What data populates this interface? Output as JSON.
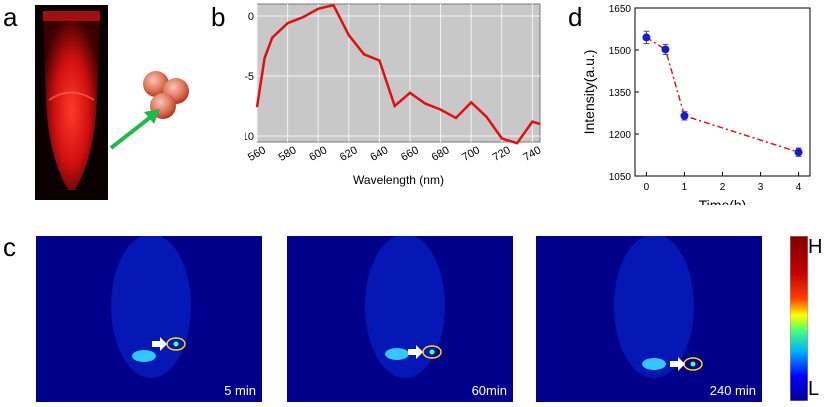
{
  "panel_labels": {
    "a": "a",
    "b": "b",
    "c": "c",
    "d": "d"
  },
  "panel_c": {
    "captions": [
      "5 min",
      "60min",
      "240 min"
    ],
    "colorbar": {
      "high": "H",
      "low": "L"
    }
  },
  "chart_data": [
    {
      "type": "line",
      "panel": "b",
      "xlabel": "Wavelength (nm)",
      "ylabel": "",
      "xlim": [
        560,
        745
      ],
      "ylim": [
        -10.5,
        1
      ],
      "xticks": [
        "560",
        "580",
        "600",
        "620",
        "640",
        "660",
        "680",
        "700",
        "720",
        "740"
      ],
      "yticks": [
        "0",
        "-5",
        "-10"
      ],
      "grid": true,
      "color": "#e01010",
      "x": [
        560,
        565,
        570,
        580,
        590,
        600,
        610,
        620,
        630,
        640,
        650,
        660,
        670,
        680,
        690,
        700,
        710,
        720,
        730,
        740,
        745
      ],
      "y": [
        -7.6,
        -3.5,
        -1.8,
        -0.6,
        -0.1,
        0.6,
        0.9,
        -1.6,
        -3.2,
        -3.7,
        -7.5,
        -6.4,
        -7.3,
        -7.8,
        -8.5,
        -7.2,
        -8.4,
        -10.2,
        -10.6,
        -8.8,
        -9.0
      ]
    },
    {
      "type": "line",
      "panel": "d",
      "xlabel": "Time(h)",
      "ylabel": "Intensity(a.u.)",
      "xlim": [
        -0.3,
        4.3
      ],
      "ylim": [
        1050,
        1650
      ],
      "xticks": [
        "0",
        "1",
        "2",
        "3",
        "4"
      ],
      "yticks": [
        "1050",
        "1200",
        "1350",
        "1500",
        "1650"
      ],
      "grid": false,
      "color": "#cc1f1f",
      "marker_color": "#1a1ad6",
      "x": [
        0,
        0.5,
        1,
        4
      ],
      "y": [
        1545,
        1502,
        1265,
        1135
      ],
      "err": [
        22,
        18,
        15,
        15
      ]
    }
  ]
}
